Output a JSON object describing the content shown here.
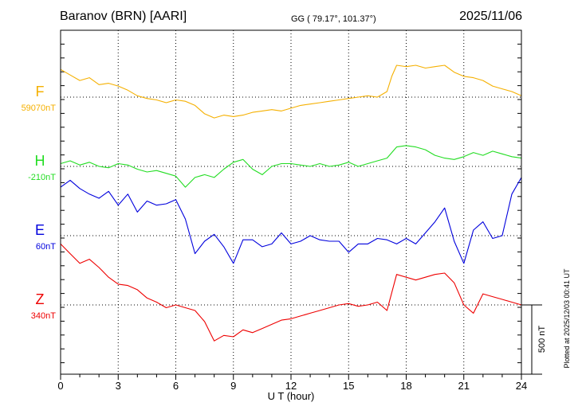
{
  "header": {
    "station": "Baranov (BRN)  [AARI]",
    "coords": "GG ( 79.17°, 101.37°)",
    "date": "2025/11/06"
  },
  "side_note": "Plotted at 2025/12/03 00:41 UT",
  "scale_bar_label": "500 nT",
  "chart_data": {
    "type": "line",
    "xlabel": "U T (hour)",
    "xlim": [
      0,
      24
    ],
    "x_ticks": [
      0,
      3,
      6,
      9,
      12,
      15,
      18,
      21,
      24
    ],
    "x_tick_labels": [
      "0",
      "3",
      "6",
      "9",
      "12",
      "15",
      "18",
      "21",
      "24"
    ],
    "y_units": "nT",
    "scale_bar_nT": 500,
    "grid": true,
    "series": [
      {
        "name": "F",
        "baseline_label": "59070nT",
        "color": "#f5b000",
        "x": [
          0,
          0.5,
          1,
          1.5,
          2,
          2.5,
          3,
          3.5,
          4,
          4.5,
          5,
          5.5,
          6,
          6.5,
          7,
          7.5,
          8,
          8.5,
          9,
          9.5,
          10,
          10.5,
          11,
          11.5,
          12,
          12.5,
          13,
          13.5,
          14,
          14.5,
          15,
          15.5,
          16,
          16.5,
          17,
          17.25,
          17.5,
          18,
          18.5,
          19,
          19.5,
          20,
          20.5,
          21,
          21.5,
          22,
          22.5,
          23,
          23.5,
          24
        ],
        "values": [
          200,
          160,
          120,
          140,
          90,
          100,
          80,
          50,
          10,
          -10,
          -20,
          -40,
          -20,
          -30,
          -60,
          -120,
          -150,
          -130,
          -140,
          -130,
          -110,
          -100,
          -90,
          -100,
          -80,
          -60,
          -50,
          -40,
          -30,
          -20,
          -10,
          0,
          10,
          0,
          40,
          150,
          230,
          220,
          230,
          210,
          220,
          230,
          180,
          150,
          140,
          120,
          80,
          60,
          40,
          10
        ]
      },
      {
        "name": "H",
        "baseline_label": "-210nT",
        "color": "#22dd22",
        "x": [
          0,
          0.5,
          1,
          1.5,
          2,
          2.5,
          3,
          3.5,
          4,
          4.5,
          5,
          5.5,
          6,
          6.5,
          7,
          7.5,
          8,
          8.5,
          9,
          9.5,
          10,
          10.5,
          11,
          11.5,
          12,
          12.5,
          13,
          13.5,
          14,
          14.5,
          15,
          15.5,
          16,
          16.5,
          17,
          17.5,
          18,
          18.5,
          19,
          19.5,
          20,
          20.5,
          21,
          21.5,
          22,
          22.5,
          23,
          23.5,
          24
        ],
        "values": [
          20,
          40,
          10,
          30,
          0,
          -10,
          20,
          10,
          -20,
          -40,
          -30,
          -50,
          -70,
          -150,
          -80,
          -60,
          -80,
          -20,
          30,
          50,
          -20,
          -60,
          0,
          20,
          20,
          10,
          0,
          20,
          0,
          10,
          30,
          0,
          20,
          40,
          60,
          140,
          150,
          140,
          120,
          80,
          60,
          50,
          70,
          100,
          80,
          110,
          90,
          70,
          60
        ]
      },
      {
        "name": "E",
        "baseline_label": "60nT",
        "color": "#0000dd",
        "x": [
          0,
          0.5,
          1,
          1.5,
          2,
          2.5,
          3,
          3.5,
          4,
          4.5,
          5,
          5.5,
          6,
          6.5,
          7,
          7.5,
          8,
          8.5,
          9,
          9.5,
          10,
          10.5,
          11,
          11.5,
          12,
          12.5,
          13,
          13.5,
          14,
          14.5,
          15,
          15.5,
          16,
          16.5,
          17,
          17.5,
          18,
          18.5,
          19,
          19.5,
          20,
          20.5,
          21,
          21.5,
          22,
          22.5,
          23,
          23.5,
          24
        ],
        "values": [
          350,
          400,
          340,
          300,
          270,
          320,
          220,
          300,
          170,
          250,
          220,
          230,
          260,
          120,
          -130,
          -40,
          10,
          -80,
          -200,
          -30,
          -30,
          -80,
          -60,
          20,
          -60,
          -40,
          0,
          -30,
          -40,
          -40,
          -120,
          -60,
          -60,
          -20,
          -30,
          -60,
          -20,
          -60,
          20,
          100,
          200,
          -40,
          -200,
          40,
          100,
          -20,
          0,
          300,
          420
        ]
      },
      {
        "name": "Z",
        "baseline_label": "340nT",
        "color": "#ee0000",
        "x": [
          0,
          0.5,
          1,
          1.5,
          2,
          2.5,
          3,
          3.5,
          4,
          4.5,
          5,
          5.5,
          6,
          6.5,
          7,
          7.5,
          8,
          8.5,
          9,
          9.5,
          10,
          10.5,
          11,
          11.5,
          12,
          12.5,
          13,
          13.5,
          14,
          14.5,
          15,
          15.5,
          16,
          16.5,
          17,
          17.5,
          18,
          18.5,
          19,
          19.5,
          20,
          20.5,
          21,
          21.5,
          22,
          22.5,
          23,
          23.5,
          24
        ],
        "values": [
          440,
          370,
          300,
          330,
          270,
          200,
          150,
          140,
          110,
          50,
          20,
          -20,
          0,
          -20,
          -40,
          -120,
          -260,
          -220,
          -230,
          -180,
          -200,
          -170,
          -140,
          -110,
          -100,
          -80,
          -60,
          -40,
          -20,
          0,
          10,
          -10,
          0,
          20,
          -40,
          220,
          200,
          180,
          200,
          220,
          230,
          160,
          0,
          -60,
          80,
          60,
          40,
          20,
          0
        ]
      }
    ]
  }
}
